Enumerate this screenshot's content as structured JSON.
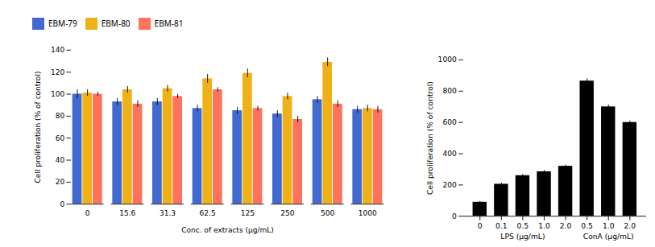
{
  "chart_data": [
    {
      "type": "bar",
      "categories": [
        "0",
        "15.6",
        "31.3",
        "62.5",
        "125",
        "250",
        "500",
        "1000"
      ],
      "series": [
        {
          "name": "EBM-79",
          "values": [
            100,
            93,
            93,
            87,
            85,
            82,
            95,
            86
          ],
          "err": [
            4,
            3,
            3,
            3,
            3,
            3,
            3,
            3
          ]
        },
        {
          "name": "EBM-80",
          "values": [
            101,
            104,
            105,
            114,
            119,
            98,
            129,
            87
          ],
          "err": [
            3,
            3,
            3,
            4,
            4,
            3,
            4,
            3
          ]
        },
        {
          "name": "EBM-81",
          "values": [
            100,
            91,
            98,
            104,
            87,
            77,
            91,
            86
          ],
          "err": [
            2,
            3,
            2,
            2,
            2,
            3,
            3,
            3
          ]
        }
      ],
      "xlabel": "Conc. of extracts (μg/mL)",
      "ylabel": "Cell proliferation (% of control)",
      "ylim": [
        0,
        140
      ],
      "yticks": [
        0,
        20,
        40,
        60,
        80,
        100,
        120,
        140
      ],
      "legend": "top",
      "grid": false
    },
    {
      "type": "bar",
      "categories": [
        "0",
        "0.1",
        "0.5",
        "1.0",
        "2.0",
        "0.5",
        "1.0",
        "2.0"
      ],
      "category_groups": [
        "LPS (μg/mL)",
        "LPS (μg/mL)",
        "LPS (μg/mL)",
        "LPS (μg/mL)",
        "LPS (μg/mL)",
        "ConA (μg/mL)",
        "ConA (μg/mL)",
        "ConA (μg/mL)"
      ],
      "values": [
        90,
        205,
        260,
        285,
        320,
        865,
        700,
        600
      ],
      "err": [
        5,
        8,
        8,
        8,
        8,
        15,
        12,
        10
      ],
      "ylabel": "Cell proliferation (% of control)",
      "ylim": [
        0,
        1000
      ],
      "yticks": [
        0,
        200,
        400,
        600,
        800,
        1000
      ],
      "grid": false
    }
  ]
}
